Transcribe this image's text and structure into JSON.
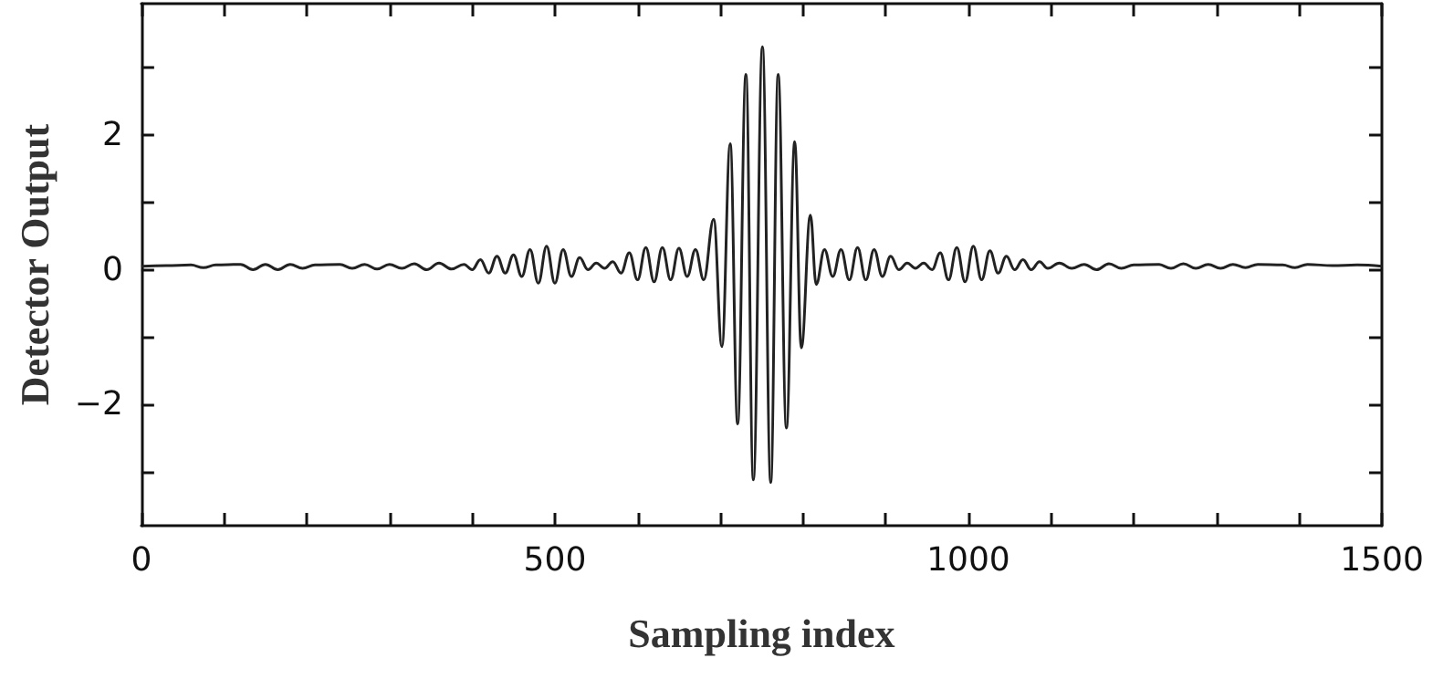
{
  "chart_data": {
    "type": "line",
    "xlabel": "Sampling index",
    "ylabel": "Detector Output",
    "xlim": [
      0,
      1500
    ],
    "ylim": [
      -3.8,
      3.95
    ],
    "xticks": [
      0,
      {
        "value": 100,
        "label": null
      },
      {
        "value": 200,
        "label": null
      },
      {
        "value": 300,
        "label": null
      },
      {
        "value": 400,
        "label": null
      },
      500,
      {
        "value": 600,
        "label": null
      },
      {
        "value": 700,
        "label": null
      },
      {
        "value": 800,
        "label": null
      },
      {
        "value": 900,
        "label": null
      },
      1000,
      {
        "value": 1100,
        "label": null
      },
      {
        "value": 1200,
        "label": null
      },
      {
        "value": 1300,
        "label": null
      },
      {
        "value": 1400,
        "label": null
      },
      1500
    ],
    "yticks": [
      {
        "value": -3,
        "label": null
      },
      {
        "value": -2,
        "label": "−2"
      },
      {
        "value": -1,
        "label": null
      },
      0,
      {
        "value": 1,
        "label": null
      },
      2,
      {
        "value": 3,
        "label": null
      }
    ],
    "grid": false,
    "marker": "none",
    "line_style": "solid",
    "series": [
      {
        "color": "#222222",
        "x": [
          0,
          30,
          60,
          75,
          90,
          120,
          135,
          150,
          165,
          180,
          195,
          210,
          240,
          255,
          270,
          285,
          300,
          315,
          330,
          345,
          360,
          375,
          390,
          400,
          410,
          420,
          430,
          440,
          450,
          460,
          470,
          480,
          490,
          500,
          510,
          520,
          530,
          540,
          550,
          560,
          570,
          580,
          590,
          600,
          610,
          620,
          630,
          640,
          650,
          660,
          670,
          680,
          692,
          702,
          712,
          721,
          731,
          740,
          751,
          761,
          770,
          780,
          790,
          798,
          809,
          816,
          826,
          836,
          846,
          856,
          866,
          876,
          886,
          896,
          906,
          916,
          926,
          936,
          946,
          956,
          966,
          976,
          986,
          996,
          1006,
          1016,
          1026,
          1036,
          1046,
          1056,
          1066,
          1076,
          1086,
          1096,
          1110,
          1125,
          1140,
          1155,
          1170,
          1185,
          1200,
          1230,
          1245,
          1260,
          1275,
          1290,
          1305,
          1320,
          1335,
          1350,
          1380,
          1395,
          1410,
          1440,
          1470,
          1500
        ],
        "values": [
          0.05,
          0.06,
          0.07,
          0.03,
          0.07,
          0.08,
          0.0,
          0.08,
          0.0,
          0.08,
          0.02,
          0.07,
          0.08,
          0.02,
          0.08,
          0.01,
          0.08,
          0.02,
          0.09,
          0.0,
          0.1,
          0.01,
          0.08,
          0.0,
          0.15,
          -0.05,
          0.2,
          -0.05,
          0.22,
          -0.1,
          0.3,
          -0.2,
          0.35,
          -0.2,
          0.3,
          -0.1,
          0.18,
          0.0,
          0.1,
          0.02,
          0.12,
          -0.05,
          0.25,
          -0.15,
          0.33,
          -0.18,
          0.33,
          -0.15,
          0.32,
          -0.1,
          0.3,
          -0.15,
          0.75,
          -1.14,
          1.87,
          -2.29,
          2.9,
          -3.12,
          3.31,
          -3.16,
          2.9,
          -2.35,
          1.9,
          -1.16,
          0.81,
          -0.22,
          0.3,
          -0.1,
          0.3,
          -0.15,
          0.33,
          -0.15,
          0.3,
          -0.1,
          0.2,
          0.0,
          0.1,
          0.02,
          0.1,
          0.0,
          0.25,
          -0.15,
          0.33,
          -0.18,
          0.35,
          -0.15,
          0.28,
          -0.05,
          0.2,
          0.0,
          0.15,
          0.0,
          0.12,
          0.02,
          0.1,
          0.02,
          0.08,
          0.0,
          0.09,
          0.02,
          0.07,
          0.08,
          0.02,
          0.09,
          0.02,
          0.08,
          0.02,
          0.08,
          0.03,
          0.08,
          0.07,
          0.03,
          0.08,
          0.06,
          0.07,
          0.05
        ]
      }
    ]
  }
}
